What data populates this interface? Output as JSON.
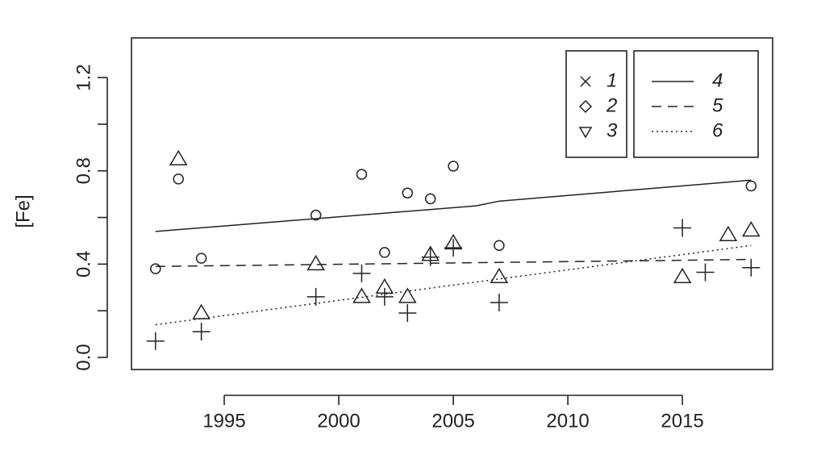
{
  "chart_data": {
    "type": "scatter",
    "y_label": "[Fe]",
    "xlim": [
      1990.95,
      2018.94
    ],
    "ylim": [
      -0.052,
      1.37
    ],
    "xticks": [
      1995,
      2000,
      2005,
      2010,
      2015
    ],
    "yticks": [
      {
        "value": 0,
        "label": "0.0"
      },
      0.4,
      0.8,
      1.2
    ],
    "yminor_ticks": [
      0.2,
      0.6,
      1.0
    ],
    "series": [
      {
        "name": "1",
        "marker": "circle",
        "legend_marker": "x",
        "color": "#222",
        "x": [
          1992,
          1993,
          1994,
          1999,
          2001,
          2002,
          2003,
          2004,
          2005,
          2007,
          2018
        ],
        "values": [
          0.38,
          0.765,
          0.425,
          0.61,
          0.785,
          0.45,
          0.705,
          0.68,
          0.82,
          0.48,
          0.735
        ]
      },
      {
        "name": "2",
        "marker": "triangle",
        "legend_marker": "diamond",
        "color": "#222",
        "x": [
          1993,
          1994,
          1999,
          2001,
          2002,
          2003,
          2004,
          2005,
          2007,
          2015,
          2017,
          2018
        ],
        "values": [
          0.85,
          0.19,
          0.4,
          0.26,
          0.3,
          0.26,
          0.44,
          0.49,
          0.345,
          0.345,
          0.525,
          0.545
        ]
      },
      {
        "name": "3",
        "marker": "plus",
        "legend_marker": "triangle-down",
        "color": "#222",
        "x": [
          1992,
          1994,
          1999,
          2001,
          2002,
          2003,
          2004,
          2005,
          2007,
          2015,
          2016,
          2018
        ],
        "values": [
          0.07,
          0.11,
          0.26,
          0.36,
          0.26,
          0.19,
          0.43,
          0.47,
          0.235,
          0.555,
          0.365,
          0.385
        ]
      },
      {
        "name": "4",
        "linestyle": "solid",
        "color": "#222",
        "x": [
          1992,
          2006,
          2007,
          2018
        ],
        "values": [
          0.54,
          0.65,
          0.67,
          0.76
        ]
      },
      {
        "name": "5",
        "linestyle": "dashed",
        "color": "#222",
        "x": [
          1992,
          2018
        ],
        "values": [
          0.39,
          0.42
        ]
      },
      {
        "name": "6",
        "linestyle": "dotted",
        "color": "#222",
        "x": [
          1992,
          2018
        ],
        "values": [
          0.14,
          0.48
        ]
      }
    ]
  }
}
